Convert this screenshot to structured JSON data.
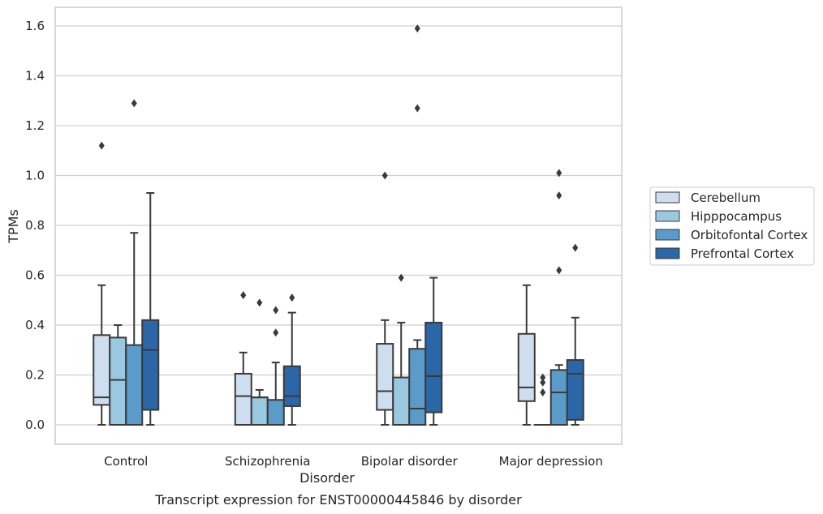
{
  "chart_data": {
    "type": "box",
    "caption": "Transcript expression for ENST00000445846 by disorder",
    "xlabel": "Disorder",
    "ylabel": "TPMs",
    "ylim": [
      -0.08,
      1.67
    ],
    "yticks": [
      "0.0",
      "0.2",
      "0.4",
      "0.6",
      "0.8",
      "1.0",
      "1.2",
      "1.4",
      "1.6"
    ],
    "grid": true,
    "legend_position": "right-center",
    "categories": [
      "Control",
      "Schizophrenia",
      "Bipolar disorder",
      "Major depression"
    ],
    "series": [
      {
        "name": "Cerebellum",
        "color": "#cfdeee",
        "boxes": [
          {
            "min": 0.0,
            "q1": 0.08,
            "median": 0.11,
            "q3": 0.36,
            "max": 0.56,
            "outliers": [
              1.12
            ]
          },
          {
            "min": 0.0,
            "q1": 0.0,
            "median": 0.115,
            "q3": 0.205,
            "max": 0.29,
            "outliers": [
              0.52
            ]
          },
          {
            "min": 0.0,
            "q1": 0.06,
            "median": 0.135,
            "q3": 0.325,
            "max": 0.42,
            "outliers": [
              1.0
            ]
          },
          {
            "min": 0.0,
            "q1": 0.095,
            "median": 0.15,
            "q3": 0.365,
            "max": 0.56,
            "outliers": []
          }
        ]
      },
      {
        "name": "Hipppocampus",
        "color": "#9ac8e0",
        "boxes": [
          {
            "min": 0.0,
            "q1": 0.0,
            "median": 0.18,
            "q3": 0.35,
            "max": 0.4,
            "outliers": []
          },
          {
            "min": 0.0,
            "q1": 0.0,
            "median": 0.11,
            "q3": 0.11,
            "max": 0.14,
            "outliers": [
              0.49
            ]
          },
          {
            "min": 0.0,
            "q1": 0.0,
            "median": 0.0,
            "q3": 0.19,
            "max": 0.41,
            "outliers": [
              0.59
            ]
          },
          {
            "min": 0.0,
            "q1": 0.0,
            "median": 0.0,
            "q3": 0.0,
            "max": 0.0,
            "outliers": [
              0.13,
              0.17,
              0.19
            ]
          }
        ]
      },
      {
        "name": "Orbitofontal Cortex",
        "color": "#5a9bc9",
        "boxes": [
          {
            "min": 0.0,
            "q1": 0.0,
            "median": 0.0,
            "q3": 0.32,
            "max": 0.77,
            "outliers": [
              1.29
            ]
          },
          {
            "min": 0.0,
            "q1": 0.0,
            "median": 0.0,
            "q3": 0.1,
            "max": 0.25,
            "outliers": [
              0.37,
              0.46
            ]
          },
          {
            "min": 0.0,
            "q1": 0.0,
            "median": 0.065,
            "q3": 0.305,
            "max": 0.34,
            "outliers": [
              1.27,
              1.59
            ]
          },
          {
            "min": 0.0,
            "q1": 0.0,
            "median": 0.13,
            "q3": 0.22,
            "max": 0.24,
            "outliers": [
              0.62,
              0.92,
              1.01
            ]
          }
        ]
      },
      {
        "name": "Prefrontal Cortex",
        "color": "#2b67a6",
        "boxes": [
          {
            "min": 0.0,
            "q1": 0.06,
            "median": 0.3,
            "q3": 0.42,
            "max": 0.93,
            "outliers": []
          },
          {
            "min": 0.0,
            "q1": 0.075,
            "median": 0.115,
            "q3": 0.235,
            "max": 0.45,
            "outliers": [
              0.51
            ]
          },
          {
            "min": 0.0,
            "q1": 0.05,
            "median": 0.195,
            "q3": 0.41,
            "max": 0.59,
            "outliers": []
          },
          {
            "min": 0.0,
            "q1": 0.02,
            "median": 0.205,
            "q3": 0.26,
            "max": 0.43,
            "outliers": [
              0.71
            ]
          }
        ]
      }
    ]
  }
}
